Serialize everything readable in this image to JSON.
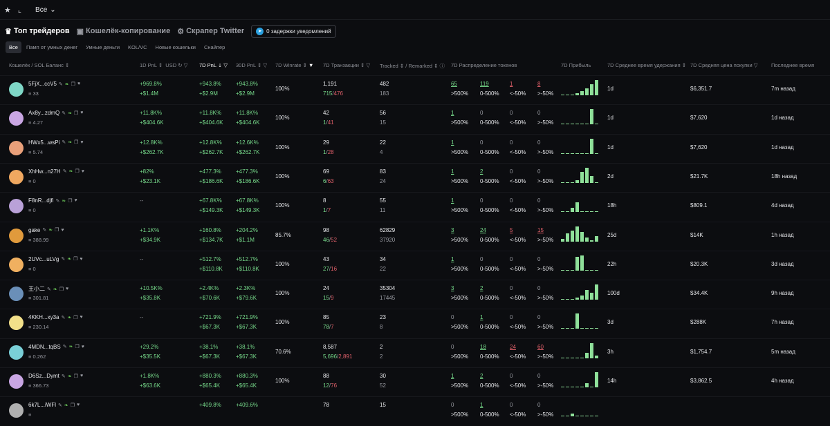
{
  "topbar": {
    "star_icon": "star-icon",
    "chart_icon": "chart-icon",
    "select_value": "Все"
  },
  "tabs": [
    {
      "label": "Топ трейдеров",
      "active": true
    },
    {
      "label": "Кошелёк-копирование",
      "active": false
    },
    {
      "label": "Скрапер Twitter",
      "active": false
    }
  ],
  "notification": {
    "label": "0 задержки уведомлений"
  },
  "filters": [
    "Все",
    "Памп от умных денег",
    "Умные деньги",
    "KOL/VC",
    "Новые кошельки",
    "Снайпер"
  ],
  "columns": {
    "wallet": "Кошелёк / SOL Баланс",
    "pnl1d": "1D PnL",
    "usd": "USD",
    "pnl7d": "7D PnL",
    "pnl30d": "30D PnL",
    "winrate": "7D Winrate",
    "tx": "7D Транзакции",
    "tracked": "Tracked",
    "remarked": "/ Remarked",
    "distribution": "7D Распределение токенов",
    "profit": "7D Прибыль",
    "hold": "7D Среднее время удержания",
    "avgprice": "7D Средняя цена покупки",
    "last": "Последнее время"
  },
  "dist_labels": [
    ">500%",
    "0-500%",
    "<-50%",
    ">-50%"
  ],
  "rows": [
    {
      "name": "5FjX...ccV5",
      "bal": "33",
      "avatar": "#7fd7c6",
      "p1a": "+969.8%",
      "p1b": "+$1.4M",
      "p7a": "+943.8%",
      "p7b": "+$2.9M",
      "p30a": "+943.8%",
      "p30b": "+$2.9M",
      "win": "100%",
      "txa": "1,191",
      "txb": "715/476",
      "tra": "482",
      "trb": "183",
      "d": [
        "65",
        "119",
        "1",
        "8"
      ],
      "bars": [
        0,
        0,
        0,
        3,
        6,
        10,
        16,
        22
      ],
      "hold": "1d",
      "price": "$6,351.7",
      "last": "7m назад"
    },
    {
      "name": "Ax8y...zdmQ",
      "bal": "4.27",
      "avatar": "#c9a6e3",
      "p1a": "+11.8K%",
      "p1b": "+$404.6K",
      "p7a": "+11.8K%",
      "p7b": "+$404.6K",
      "p30a": "+11.8K%",
      "p30b": "+$404.6K",
      "win": "100%",
      "txa": "42",
      "txb": "1/41",
      "tra": "56",
      "trb": "15",
      "d": [
        "1",
        "0",
        "0",
        "0"
      ],
      "bars": [
        0,
        0,
        0,
        0,
        0,
        0,
        22,
        0
      ],
      "hold": "1d",
      "price": "$7,620",
      "last": "1d назад"
    },
    {
      "name": "HWx5...wsPi",
      "bal": "5.74",
      "avatar": "#e9a07a",
      "p1a": "+12.8K%",
      "p1b": "+$262.7K",
      "p7a": "+12.8K%",
      "p7b": "+$262.7K",
      "p30a": "+12.6K%",
      "p30b": "+$262.7K",
      "win": "100%",
      "txa": "29",
      "txb": "1/28",
      "tra": "22",
      "trb": "4",
      "d": [
        "1",
        "0",
        "0",
        "0"
      ],
      "bars": [
        0,
        0,
        0,
        0,
        0,
        0,
        22,
        0
      ],
      "hold": "1d",
      "price": "$7,620",
      "last": "1d назад"
    },
    {
      "name": "XhHw...n27H",
      "bal": "0",
      "avatar": "#f0a860",
      "p1a": "+82%",
      "p1b": "+$23.1K",
      "p7a": "+477.3%",
      "p7b": "+$186.6K",
      "p30a": "+477.3%",
      "p30b": "+$186.6K",
      "win": "100%",
      "txa": "69",
      "txb": "6/63",
      "tra": "83",
      "trb": "24",
      "d": [
        "1",
        "2",
        "0",
        "0"
      ],
      "bars": [
        0,
        0,
        0,
        4,
        16,
        22,
        10,
        0
      ],
      "hold": "2d",
      "price": "$21.7K",
      "last": "18h назад"
    },
    {
      "name": "F8nR...djfi",
      "bal": "0",
      "avatar": "#b9a1d8",
      "p1a": "--",
      "p1b": "",
      "p7a": "+67.8K%",
      "p7b": "+$149.3K",
      "p30a": "+67.8K%",
      "p30b": "+$149.3K",
      "win": "100%",
      "txa": "8",
      "txb": "1/7",
      "tra": "55",
      "trb": "11",
      "d": [
        "1",
        "0",
        "0",
        "0"
      ],
      "bars": [
        0,
        0,
        6,
        14,
        0,
        0,
        0,
        0
      ],
      "hold": "18h",
      "price": "$809.1",
      "last": "4d назад"
    },
    {
      "name": "gake",
      "bal": "388.99",
      "avatar": "#e09a3c",
      "p1a": "+1.1K%",
      "p1b": "+$34.9K",
      "p7a": "+160.8%",
      "p7b": "+$134.7K",
      "p30a": "+204.2%",
      "p30b": "+$1.1M",
      "win": "85.7%",
      "txa": "98",
      "txb": "46/52",
      "tra": "62829",
      "trb": "37920",
      "d": [
        "3",
        "24",
        "5",
        "15"
      ],
      "bars": [
        4,
        12,
        16,
        22,
        14,
        6,
        2,
        8
      ],
      "hold": "25d",
      "price": "$14K",
      "last": "1h назад"
    },
    {
      "name": "2UVc...uLVg",
      "bal": "0",
      "avatar": "#f0b060",
      "p1a": "--",
      "p1b": "",
      "p7a": "+512.7%",
      "p7b": "+$110.8K",
      "p30a": "+512.7%",
      "p30b": "+$110.8K",
      "win": "100%",
      "txa": "43",
      "txb": "27/16",
      "tra": "34",
      "trb": "22",
      "d": [
        "1",
        "0",
        "0",
        "0"
      ],
      "bars": [
        0,
        0,
        0,
        20,
        22,
        0,
        0,
        0
      ],
      "hold": "22h",
      "price": "$20.3K",
      "last": "3d назад"
    },
    {
      "name": "王小二",
      "bal": "301.81",
      "avatar": "#6a8fb8",
      "p1a": "+10.5K%",
      "p1b": "+$35.8K",
      "p7a": "+2.4K%",
      "p7b": "+$70.6K",
      "p30a": "+2.3K%",
      "p30b": "+$79.6K",
      "win": "100%",
      "txa": "24",
      "txb": "15/9",
      "tra": "35304",
      "trb": "17445",
      "d": [
        "3",
        "2",
        "0",
        "0"
      ],
      "bars": [
        0,
        0,
        0,
        3,
        6,
        14,
        10,
        22
      ],
      "hold": "100d",
      "price": "$34.4K",
      "last": "9h назад"
    },
    {
      "name": "4KKH...xy3a",
      "bal": "230.14",
      "avatar": "#f2e08a",
      "p1a": "--",
      "p1b": "",
      "p7a": "+721.9%",
      "p7b": "+$67.3K",
      "p30a": "+721.9%",
      "p30b": "+$67.3K",
      "win": "100%",
      "txa": "85",
      "txb": "78/7",
      "tra": "23",
      "trb": "8",
      "d": [
        "0",
        "1",
        "0",
        "0"
      ],
      "bars": [
        0,
        0,
        0,
        22,
        0,
        0,
        0,
        0
      ],
      "hold": "3d",
      "price": "$288K",
      "last": "7h назад"
    },
    {
      "name": "4MDN...tqBS",
      "bal": "0.262",
      "avatar": "#7ad0d8",
      "p1a": "+29.2%",
      "p1b": "+$35.5K",
      "p7a": "+38.1%",
      "p7b": "+$67.3K",
      "p30a": "+38.1%",
      "p30b": "+$67.3K",
      "win": "70.6%",
      "txa": "8,587",
      "txb": "5,696/2,891",
      "tra": "2",
      "trb": "2",
      "d": [
        "0",
        "18",
        "24",
        "60"
      ],
      "bars": [
        0,
        0,
        0,
        0,
        0,
        8,
        22,
        4
      ],
      "hold": "3h",
      "price": "$1,754.7",
      "last": "5m назад"
    },
    {
      "name": "D6Sz...Dymt",
      "bal": "366.73",
      "avatar": "#c9a6e3",
      "p1a": "+1.8K%",
      "p1b": "+$63.6K",
      "p7a": "+880.3%",
      "p7b": "+$65.4K",
      "p30a": "+880.3%",
      "p30b": "+$65.4K",
      "win": "100%",
      "txa": "88",
      "txb": "12/76",
      "tra": "30",
      "trb": "52",
      "d": [
        "1",
        "2",
        "0",
        "0"
      ],
      "bars": [
        0,
        0,
        0,
        0,
        0,
        6,
        0,
        22
      ],
      "hold": "14h",
      "price": "$3,862.5",
      "last": "4h назад"
    },
    {
      "name": "6k7L...iWFl",
      "bal": "",
      "avatar": "#b0b0b0",
      "p1a": "",
      "p1b": "",
      "p7a": "+409.8%",
      "p7b": "",
      "p30a": "+409.6%",
      "p30b": "",
      "win": "",
      "txa": "78",
      "txb": "",
      "tra": "15",
      "trb": "",
      "d": [
        "0",
        "1",
        "0",
        "0"
      ],
      "bars": [
        0,
        0,
        4,
        0,
        0,
        0,
        0,
        0
      ],
      "hold": "",
      "price": "",
      "last": ""
    }
  ]
}
